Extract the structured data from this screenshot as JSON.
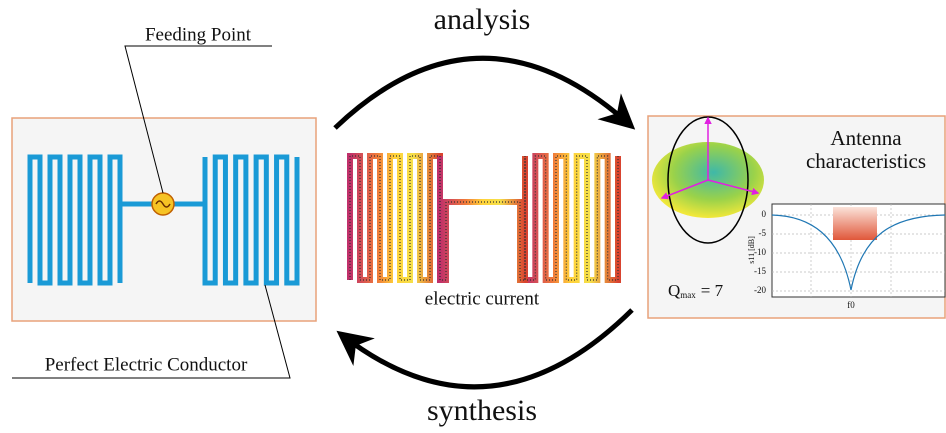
{
  "top_label": "analysis",
  "bottom_label": "synthesis",
  "left_panel": {
    "feed_label": "Feeding Point",
    "conductor_label": "Perfect Electric Conductor"
  },
  "middle": {
    "label": "electric current"
  },
  "right_panel": {
    "title_line1": "Antenna",
    "title_line2": "characteristics",
    "q": {
      "symbol": "Q",
      "sub": "max",
      "rest": "= 7"
    },
    "plot": {
      "yticks": [
        "0",
        "-5",
        "-10",
        "-15",
        "-20"
      ],
      "ylabel": "s11 [dB]",
      "xlabel": "f0"
    }
  }
}
